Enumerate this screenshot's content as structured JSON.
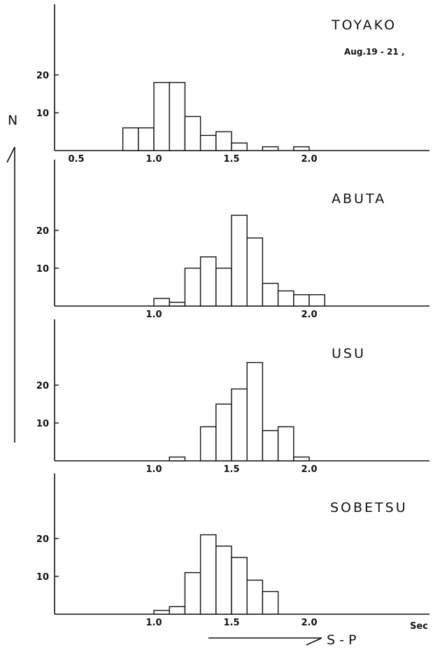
{
  "ylabel": "N",
  "xlabel": "S - P",
  "x_unit": "Sec",
  "chart_data": [
    {
      "type": "bar",
      "title": "TOYAKO",
      "subtitle": "Aug.19 - 21 ,",
      "bin_width": 0.1,
      "bins": [
        0.8,
        0.9,
        1.0,
        1.1,
        1.2,
        1.3,
        1.4,
        1.5,
        1.6,
        1.7,
        1.8,
        1.9
      ],
      "values": [
        6,
        6,
        18,
        18,
        9,
        4,
        5,
        2,
        0,
        1,
        0,
        1
      ],
      "xticks": [
        "0.5",
        "1.0",
        "1.5",
        "2.0"
      ],
      "yticks": [
        "10",
        "20"
      ],
      "ylim": [
        0,
        27
      ]
    },
    {
      "type": "bar",
      "title": "ABUTA",
      "bin_width": 0.1,
      "bins": [
        1.0,
        1.1,
        1.2,
        1.3,
        1.4,
        1.5,
        1.6,
        1.7,
        1.8,
        1.9,
        2.0
      ],
      "values": [
        2,
        1,
        10,
        13,
        10,
        24,
        18,
        6,
        4,
        3,
        3
      ],
      "xticks": [
        "1.0",
        "2.0"
      ],
      "yticks": [
        "10",
        "20"
      ],
      "ylim": [
        0,
        27
      ]
    },
    {
      "type": "bar",
      "title": "USU",
      "bin_width": 0.1,
      "bins": [
        1.1,
        1.2,
        1.3,
        1.4,
        1.5,
        1.6,
        1.7,
        1.8,
        1.9
      ],
      "values": [
        1,
        0,
        9,
        15,
        19,
        26,
        8,
        9,
        1
      ],
      "xticks": [
        "1.0",
        "1.5",
        "2.0"
      ],
      "yticks": [
        "10",
        "20"
      ],
      "ylim": [
        0,
        27
      ]
    },
    {
      "type": "bar",
      "title": "SOBETSU",
      "bin_width": 0.1,
      "bins": [
        1.0,
        1.1,
        1.2,
        1.3,
        1.4,
        1.5,
        1.6,
        1.7
      ],
      "values": [
        1,
        2,
        11,
        21,
        18,
        15,
        9,
        6
      ],
      "xticks": [
        "1.0",
        "1.5",
        "2.0"
      ],
      "yticks": [
        "10",
        "20"
      ],
      "ylim": [
        0,
        27
      ]
    }
  ]
}
